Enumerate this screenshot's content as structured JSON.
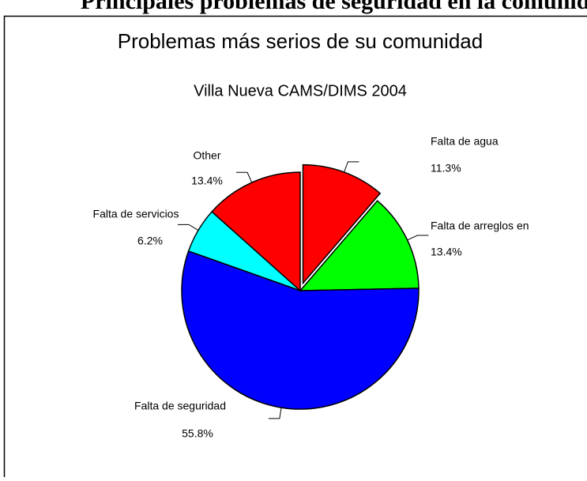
{
  "header": {
    "title": "Principales problemas de seguridad en la comunidad"
  },
  "chart_data": {
    "type": "pie",
    "title": "Problemas más serios de su comunidad",
    "subtitle": "Villa Nueva CAMS/DIMS 2004",
    "categories": [
      "Falta de agua",
      "Falta de arreglos en",
      "Falta de seguridad",
      "Falta de servicios",
      "Other"
    ],
    "values": [
      11.3,
      13.4,
      55.8,
      6.2,
      13.4
    ],
    "value_labels": [
      "11.3%",
      "13.4%",
      "55.8%",
      "6.2%",
      "13.4%"
    ],
    "colors": [
      "#ff0000",
      "#00ff00",
      "#0000ff",
      "#00ffff",
      "#ff0000"
    ],
    "exploded": [
      true,
      false,
      false,
      false,
      false
    ]
  }
}
